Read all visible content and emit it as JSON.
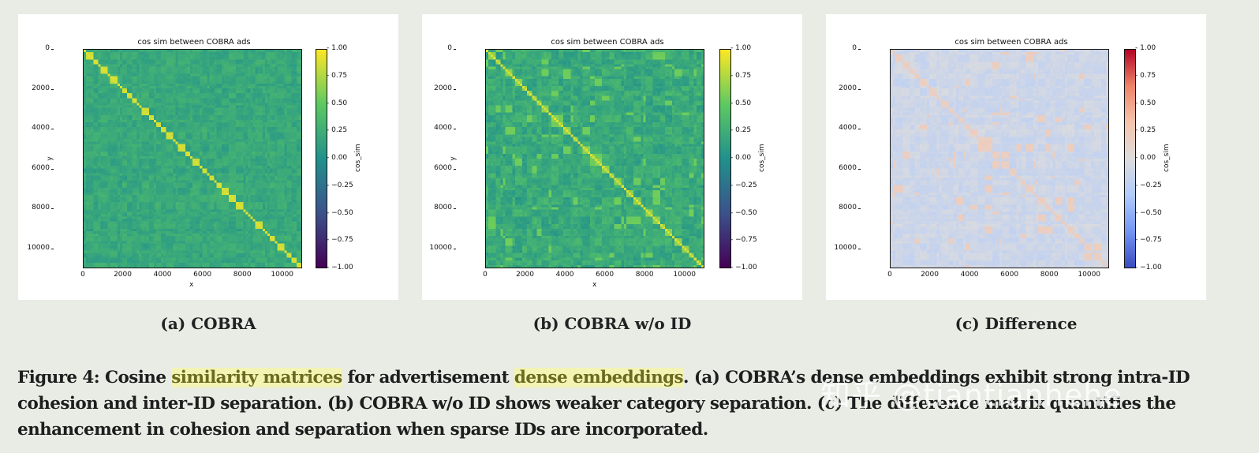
{
  "figure": {
    "number": "Figure 4:",
    "caption_parts": [
      {
        "text": "Figure 4: Cosine ",
        "highlight": false
      },
      {
        "text": "similarity matrices",
        "highlight": true
      },
      {
        "text": " for advertisement ",
        "highlight": false
      },
      {
        "text": "dense embeddings",
        "highlight": true
      },
      {
        "text": ". (a) COBRA’s dense embeddings exhibit strong intra-ID cohesion and inter-ID separation. (b) COBRA w/o ID shows weaker category separation. (c) The difference matrix quantifies the enhancement in cohesion and separation when sparse IDs are incorporated.",
        "highlight": false
      }
    ],
    "watermark": "知乎 @tiantianhehe"
  },
  "colors": {
    "page_bg": "#e8ece4",
    "highlight_bg": "#f3f3b4",
    "highlight_text": "#6b6a1e"
  },
  "panels": [
    {
      "subcaption": "(a) COBRA",
      "title": "cos sim between COBRA ads",
      "xlabel": "x",
      "ylabel": "y",
      "cbar_label": "cos_sim",
      "cmap": "viridis"
    },
    {
      "subcaption": "(b) COBRA w/o ID",
      "title": "cos sim between COBRA ads",
      "xlabel": "x",
      "ylabel": "y",
      "cbar_label": "cos_sim",
      "cmap": "viridis"
    },
    {
      "subcaption": "(c) Difference",
      "title": "cos sim between COBRA ads",
      "xlabel": "",
      "ylabel": "",
      "cbar_label": "cos_sim",
      "cmap": "coolwarm"
    }
  ],
  "axis_ticks": {
    "x": [
      "0",
      "2000",
      "4000",
      "6000",
      "8000",
      "10000"
    ],
    "y": [
      "0",
      "2000",
      "4000",
      "6000",
      "8000",
      "10000"
    ],
    "cbar": [
      "1.00",
      "0.75",
      "0.50",
      "0.25",
      "0.00",
      "−0.25",
      "−0.50",
      "−0.75",
      "−1.00"
    ]
  },
  "chart_data": [
    {
      "type": "heatmap",
      "title": "cos sim between COBRA ads",
      "subcaption": "(a) COBRA",
      "xlabel": "x",
      "ylabel": "y",
      "xlim": [
        0,
        11000
      ],
      "ylim": [
        11000,
        0
      ],
      "x_ticks": [
        0,
        2000,
        4000,
        6000,
        8000,
        10000
      ],
      "y_ticks": [
        0,
        2000,
        4000,
        6000,
        8000,
        10000
      ],
      "colorbar": {
        "label": "cos_sim",
        "range": [
          -1.0,
          1.0
        ],
        "ticks": [
          -1.0,
          -0.75,
          -0.5,
          -0.25,
          0.0,
          0.25,
          0.5,
          0.75,
          1.0
        ],
        "cmap": "viridis"
      },
      "description": "Bright diagonal blocks (~0.8-1.0) along main diagonal; off-diagonal values mostly ~0.1-0.35",
      "diag_value": 0.9,
      "offdiag_mean": 0.2,
      "offdiag_spread": 0.12,
      "grid": false
    },
    {
      "type": "heatmap",
      "title": "cos sim between COBRA ads",
      "subcaption": "(b) COBRA w/o ID",
      "xlabel": "x",
      "ylabel": "y",
      "xlim": [
        0,
        11000
      ],
      "ylim": [
        11000,
        0
      ],
      "x_ticks": [
        0,
        2000,
        4000,
        6000,
        8000,
        10000
      ],
      "y_ticks": [
        0,
        2000,
        4000,
        6000,
        8000,
        10000
      ],
      "colorbar": {
        "label": "cos_sim",
        "range": [
          -1.0,
          1.0
        ],
        "ticks": [
          -1.0,
          -0.75,
          -0.5,
          -0.25,
          0.0,
          0.25,
          0.5,
          0.75,
          1.0
        ],
        "cmap": "viridis"
      },
      "description": "Thin bright diagonal; stronger off-diagonal bright block clusters (~0.5-0.6), weaker category separation",
      "diag_value": 0.9,
      "offdiag_mean": 0.22,
      "offdiag_spread": 0.18,
      "grid": false
    },
    {
      "type": "heatmap",
      "title": "cos sim between COBRA ads",
      "subcaption": "(c) Difference",
      "xlabel": "",
      "ylabel": "",
      "xlim": [
        0,
        11000
      ],
      "ylim": [
        11000,
        0
      ],
      "x_ticks": [
        0,
        2000,
        4000,
        6000,
        8000,
        10000
      ],
      "y_ticks": [
        0,
        2000,
        4000,
        6000,
        8000,
        10000
      ],
      "colorbar": {
        "label": "cos_sim",
        "range": [
          -1.0,
          1.0
        ],
        "ticks": [
          -1.0,
          -0.75,
          -0.5,
          -0.25,
          0.0,
          0.25,
          0.5,
          0.75,
          1.0
        ],
        "cmap": "coolwarm"
      },
      "description": "Mostly near zero (light gray/light blue, ~-0.1 to -0.2), faint positive (light red ~0.2) along diagonal",
      "diag_value": 0.22,
      "offdiag_mean": -0.12,
      "offdiag_spread": 0.1,
      "grid": false
    }
  ]
}
